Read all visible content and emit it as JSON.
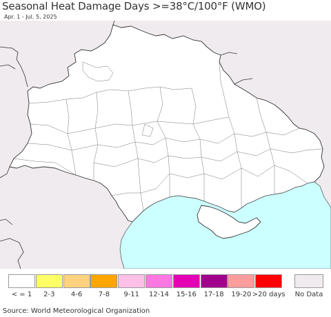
{
  "header": {
    "title": "Seasonal Heat Damage Days >=38°C/100°F (WMO)",
    "subtitle": "Apr. 1 - Jul. 5, 2025"
  },
  "map": {
    "sea_color": "#ccffff",
    "land_color": "#ffffff",
    "outside_color": "#efebef",
    "border_color": "#333333"
  },
  "legend": {
    "items": [
      {
        "label": "< = 1",
        "color": "#ffffff"
      },
      {
        "label": "2-3",
        "color": "#ffff66"
      },
      {
        "label": "4-6",
        "color": "#ffd27f"
      },
      {
        "label": "7-8",
        "color": "#ffa500"
      },
      {
        "label": "9-11",
        "color": "#ffc0e8"
      },
      {
        "label": "12-14",
        "color": "#ff77e0"
      },
      {
        "label": "15-16",
        "color": "#e600b4"
      },
      {
        "label": "17-18",
        "color": "#a0008c"
      },
      {
        "label": "19-20",
        "color": "#ff9c9c"
      },
      {
        "label": ">20 days",
        "color": "#ff0000"
      }
    ],
    "nodata": {
      "label": "No Data",
      "color": "#efebef"
    }
  },
  "footer": {
    "source": "Source: World Meteorological Organization"
  }
}
